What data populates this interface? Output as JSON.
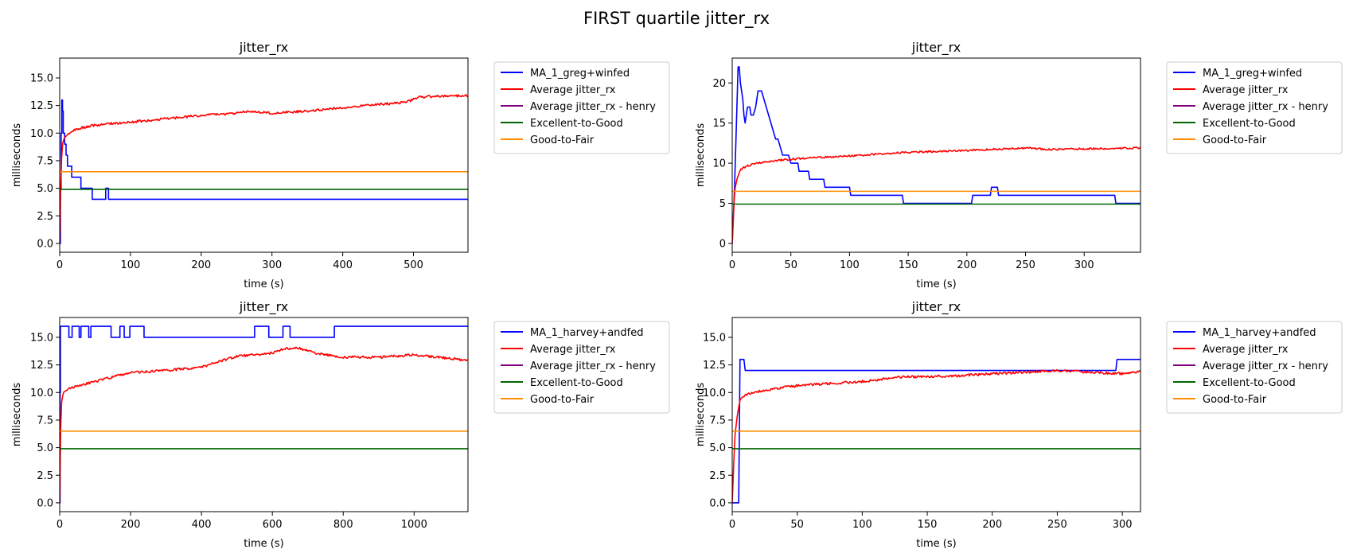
{
  "figure": {
    "suptitle": "FIRST quartile jitter_rx"
  },
  "chart_data": [
    {
      "type": "line",
      "title": "jitter_rx",
      "xlabel": "time (s)",
      "ylabel": "milliseconds",
      "xlim": [
        0,
        577
      ],
      "ylim": [
        -0.8,
        16.8
      ],
      "xticks": [
        0,
        100,
        200,
        300,
        400,
        500
      ],
      "yticks": [
        0.0,
        2.5,
        5.0,
        7.5,
        10.0,
        12.5,
        15.0
      ],
      "xtick_labels": [
        "0",
        "100",
        "200",
        "300",
        "400",
        "500"
      ],
      "ytick_labels": [
        "0.0",
        "2.5",
        "5.0",
        "7.5",
        "10.0",
        "12.5",
        "15.0"
      ],
      "legend_position": "outside right",
      "series": [
        {
          "name": "MA_1_greg+winfed",
          "color": "#0000ff",
          "step": true,
          "points": [
            [
              0,
              0
            ],
            [
              1,
              5
            ],
            [
              2,
              10
            ],
            [
              3,
              13
            ],
            [
              4,
              12
            ],
            [
              5,
              10
            ],
            [
              7,
              9
            ],
            [
              9,
              8
            ],
            [
              11,
              7
            ],
            [
              17,
              6
            ],
            [
              30,
              5
            ],
            [
              46,
              4
            ],
            [
              65,
              5
            ],
            [
              69,
              4
            ],
            [
              577,
              4
            ]
          ]
        },
        {
          "name": "Average jitter_rx",
          "color": "#ff0000",
          "noisy": true,
          "points": [
            [
              0,
              0
            ],
            [
              1,
              4
            ],
            [
              2,
              7
            ],
            [
              4,
              9
            ],
            [
              6,
              9.5
            ],
            [
              10,
              9.8
            ],
            [
              20,
              10.3
            ],
            [
              40,
              10.6
            ],
            [
              60,
              10.8
            ],
            [
              100,
              11
            ],
            [
              150,
              11.3
            ],
            [
              200,
              11.6
            ],
            [
              250,
              11.8
            ],
            [
              270,
              12.0
            ],
            [
              300,
              11.8
            ],
            [
              350,
              12.0
            ],
            [
              400,
              12.3
            ],
            [
              450,
              12.6
            ],
            [
              490,
              12.8
            ],
            [
              510,
              13.3
            ],
            [
              577,
              13.4
            ]
          ]
        },
        {
          "name": "Average jitter_rx - henry",
          "color": "#800080",
          "points": []
        },
        {
          "name": "Excellent-to-Good",
          "color": "#006400",
          "points": [
            [
              0,
              4.9
            ],
            [
              577,
              4.9
            ]
          ]
        },
        {
          "name": "Good-to-Fair",
          "color": "#ff8c00",
          "points": [
            [
              0,
              6.5
            ],
            [
              577,
              6.5
            ]
          ]
        }
      ]
    },
    {
      "type": "line",
      "title": "jitter_rx",
      "xlabel": "time (s)",
      "ylabel": "milliseconds",
      "xlim": [
        0,
        348
      ],
      "ylim": [
        -1.1,
        23.1
      ],
      "xticks": [
        0,
        50,
        100,
        150,
        200,
        250,
        300
      ],
      "yticks": [
        0,
        5,
        10,
        15,
        20
      ],
      "xtick_labels": [
        "0",
        "50",
        "100",
        "150",
        "200",
        "250",
        "300"
      ],
      "ytick_labels": [
        "0",
        "5",
        "10",
        "15",
        "20"
      ],
      "legend_position": "outside right",
      "series": [
        {
          "name": "MA_1_greg+winfed",
          "color": "#0000ff",
          "points": [
            [
              0,
              0
            ],
            [
              2,
              7
            ],
            [
              3,
              12
            ],
            [
              5,
              22
            ],
            [
              6,
              22
            ],
            [
              7,
              20
            ],
            [
              9,
              18
            ],
            [
              10,
              16
            ],
            [
              11,
              15
            ],
            [
              13,
              17
            ],
            [
              15,
              17
            ],
            [
              16,
              16
            ],
            [
              18,
              16
            ],
            [
              20,
              17
            ],
            [
              22,
              19
            ],
            [
              25,
              19
            ],
            [
              27,
              18
            ],
            [
              29,
              17
            ],
            [
              31,
              16
            ],
            [
              33,
              15
            ],
            [
              35,
              14
            ],
            [
              37,
              13
            ],
            [
              39,
              13
            ],
            [
              41,
              12
            ],
            [
              43,
              11
            ],
            [
              48,
              11
            ],
            [
              50,
              10
            ],
            [
              56,
              10
            ],
            [
              57,
              9
            ],
            [
              65,
              9
            ],
            [
              66,
              8
            ],
            [
              78,
              8
            ],
            [
              79,
              7
            ],
            [
              100,
              7
            ],
            [
              101,
              6
            ],
            [
              145,
              6
            ],
            [
              146,
              5
            ],
            [
              204,
              5
            ],
            [
              205,
              6
            ],
            [
              220,
              6
            ],
            [
              221,
              7
            ],
            [
              226,
              7
            ],
            [
              227,
              6
            ],
            [
              326,
              6
            ],
            [
              327,
              5
            ],
            [
              348,
              5
            ]
          ]
        },
        {
          "name": "Average jitter_rx",
          "color": "#ff0000",
          "noisy": true,
          "points": [
            [
              0,
              0
            ],
            [
              1,
              3
            ],
            [
              2,
              6.5
            ],
            [
              4,
              8
            ],
            [
              7,
              9.2
            ],
            [
              12,
              9.6
            ],
            [
              20,
              10
            ],
            [
              35,
              10.3
            ],
            [
              60,
              10.6
            ],
            [
              100,
              10.9
            ],
            [
              140,
              11.3
            ],
            [
              200,
              11.6
            ],
            [
              250,
              11.9
            ],
            [
              270,
              11.7
            ],
            [
              300,
              11.8
            ],
            [
              348,
              11.9
            ]
          ]
        },
        {
          "name": "Average jitter_rx - henry",
          "color": "#800080",
          "points": []
        },
        {
          "name": "Excellent-to-Good",
          "color": "#006400",
          "points": [
            [
              0,
              4.9
            ],
            [
              348,
              4.9
            ]
          ]
        },
        {
          "name": "Good-to-Fair",
          "color": "#ff8c00",
          "points": [
            [
              0,
              6.5
            ],
            [
              348,
              6.5
            ]
          ]
        }
      ]
    },
    {
      "type": "line",
      "title": "jitter_rx",
      "xlabel": "time (s)",
      "ylabel": "milliseconds",
      "xlim": [
        0,
        1152
      ],
      "ylim": [
        -0.8,
        16.8
      ],
      "xticks": [
        0,
        200,
        400,
        600,
        800,
        1000
      ],
      "yticks": [
        0.0,
        2.5,
        5.0,
        7.5,
        10.0,
        12.5,
        15.0
      ],
      "xtick_labels": [
        "0",
        "200",
        "400",
        "600",
        "800",
        "1000"
      ],
      "ytick_labels": [
        "0.0",
        "2.5",
        "5.0",
        "7.5",
        "10.0",
        "12.5",
        "15.0"
      ],
      "legend_position": "outside right",
      "series": [
        {
          "name": "MA_1_harvey+andfed",
          "color": "#0000ff",
          "step": true,
          "points": [
            [
              0,
              0
            ],
            [
              1,
              10
            ],
            [
              2,
              16
            ],
            [
              26,
              15
            ],
            [
              35,
              16
            ],
            [
              55,
              15
            ],
            [
              60,
              16
            ],
            [
              82,
              15
            ],
            [
              88,
              16
            ],
            [
              145,
              15
            ],
            [
              170,
              16
            ],
            [
              182,
              15
            ],
            [
              198,
              16
            ],
            [
              238,
              15
            ],
            [
              550,
              16
            ],
            [
              590,
              15
            ],
            [
              630,
              16
            ],
            [
              650,
              15
            ],
            [
              775,
              16
            ],
            [
              1152,
              16
            ]
          ]
        },
        {
          "name": "Average jitter_rx",
          "color": "#ff0000",
          "noisy": true,
          "points": [
            [
              0,
              0
            ],
            [
              2,
              6
            ],
            [
              5,
              9
            ],
            [
              10,
              10
            ],
            [
              30,
              10.4
            ],
            [
              60,
              10.7
            ],
            [
              100,
              11
            ],
            [
              150,
              11.4
            ],
            [
              200,
              11.8
            ],
            [
              300,
              12
            ],
            [
              400,
              12.3
            ],
            [
              470,
              13
            ],
            [
              500,
              13.3
            ],
            [
              550,
              13.4
            ],
            [
              600,
              13.6
            ],
            [
              640,
              14
            ],
            [
              680,
              14
            ],
            [
              720,
              13.6
            ],
            [
              800,
              13.2
            ],
            [
              900,
              13.2
            ],
            [
              1000,
              13.4
            ],
            [
              1100,
              13.1
            ],
            [
              1152,
              12.9
            ]
          ]
        },
        {
          "name": "Average jitter_rx - henry",
          "color": "#800080",
          "points": []
        },
        {
          "name": "Excellent-to-Good",
          "color": "#006400",
          "points": [
            [
              0,
              4.9
            ],
            [
              1152,
              4.9
            ]
          ]
        },
        {
          "name": "Good-to-Fair",
          "color": "#ff8c00",
          "points": [
            [
              0,
              6.5
            ],
            [
              1152,
              6.5
            ]
          ]
        }
      ]
    },
    {
      "type": "line",
      "title": "jitter_rx",
      "xlabel": "time (s)",
      "ylabel": "milliseconds",
      "xlim": [
        0,
        314
      ],
      "ylim": [
        -0.8,
        16.8
      ],
      "xticks": [
        0,
        50,
        100,
        150,
        200,
        250,
        300
      ],
      "yticks": [
        0.0,
        2.5,
        5.0,
        7.5,
        10.0,
        12.5,
        15.0
      ],
      "xtick_labels": [
        "0",
        "50",
        "100",
        "150",
        "200",
        "250",
        "300"
      ],
      "ytick_labels": [
        "0.0",
        "2.5",
        "5.0",
        "7.5",
        "10.0",
        "12.5",
        "15.0"
      ],
      "legend_position": "outside right",
      "series": [
        {
          "name": "MA_1_harvey+andfed",
          "color": "#0000ff",
          "points": [
            [
              0,
              0
            ],
            [
              4,
              0
            ],
            [
              5,
              0
            ],
            [
              6,
              13
            ],
            [
              9,
              13
            ],
            [
              10,
              12
            ],
            [
              295,
              12
            ],
            [
              296,
              13
            ],
            [
              314,
              13
            ]
          ]
        },
        {
          "name": "Average jitter_rx",
          "color": "#ff0000",
          "noisy": true,
          "points": [
            [
              0,
              0
            ],
            [
              1,
              3
            ],
            [
              2,
              6
            ],
            [
              4,
              8
            ],
            [
              6,
              9.3
            ],
            [
              10,
              9.8
            ],
            [
              20,
              10.1
            ],
            [
              40,
              10.5
            ],
            [
              60,
              10.7
            ],
            [
              100,
              11
            ],
            [
              130,
              11.4
            ],
            [
              170,
              11.5
            ],
            [
              200,
              11.7
            ],
            [
              220,
              11.8
            ],
            [
              250,
              12
            ],
            [
              280,
              11.8
            ],
            [
              300,
              11.7
            ],
            [
              314,
              11.9
            ]
          ]
        },
        {
          "name": "Average jitter_rx - henry",
          "color": "#800080",
          "points": []
        },
        {
          "name": "Excellent-to-Good",
          "color": "#006400",
          "points": [
            [
              0,
              4.9
            ],
            [
              314,
              4.9
            ]
          ]
        },
        {
          "name": "Good-to-Fair",
          "color": "#ff8c00",
          "points": [
            [
              0,
              6.5
            ],
            [
              314,
              6.5
            ]
          ]
        }
      ]
    }
  ]
}
